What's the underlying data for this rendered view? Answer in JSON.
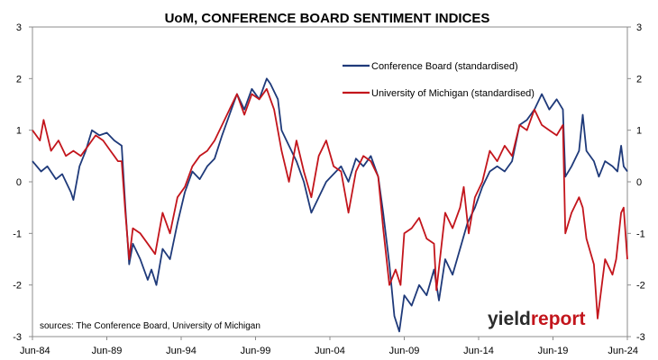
{
  "chart_data": {
    "type": "line",
    "title": "UoM, CONFERENCE BOARD SENTIMENT INDICES",
    "x_range": [
      "1984-06",
      "2024-06"
    ],
    "x_tick_labels": [
      "Jun-84",
      "Jun-89",
      "Jun-94",
      "Jun-99",
      "Jun-04",
      "Jun-09",
      "Jun-14",
      "Jun-19",
      "Jun-24"
    ],
    "ylim": [
      -3,
      3
    ],
    "y_ticks": [
      3,
      2,
      1,
      0,
      -1,
      -2,
      -3
    ],
    "y_axes": "left and right, identical scales",
    "grid": false,
    "legend_placement": "top-right",
    "series": [
      {
        "name": "Conference Board (standardised)",
        "color": "#1f3a7a",
        "points": [
          [
            "1984-06",
            0.4
          ],
          [
            "1985-01",
            0.2
          ],
          [
            "1985-06",
            0.3
          ],
          [
            "1986-01",
            0.05
          ],
          [
            "1986-06",
            0.15
          ],
          [
            "1987-01",
            -0.2
          ],
          [
            "1987-03",
            -0.35
          ],
          [
            "1987-08",
            0.3
          ],
          [
            "1988-01",
            0.6
          ],
          [
            "1988-06",
            1.0
          ],
          [
            "1988-12",
            0.9
          ],
          [
            "1989-06",
            0.95
          ],
          [
            "1989-12",
            0.8
          ],
          [
            "1990-06",
            0.7
          ],
          [
            "1990-09",
            -0.5
          ],
          [
            "1990-12",
            -1.6
          ],
          [
            "1991-03",
            -1.2
          ],
          [
            "1991-09",
            -1.5
          ],
          [
            "1992-03",
            -1.9
          ],
          [
            "1992-06",
            -1.7
          ],
          [
            "1992-10",
            -2.0
          ],
          [
            "1993-03",
            -1.3
          ],
          [
            "1993-09",
            -1.5
          ],
          [
            "1994-03",
            -0.8
          ],
          [
            "1994-09",
            -0.2
          ],
          [
            "1995-03",
            0.2
          ],
          [
            "1995-09",
            0.05
          ],
          [
            "1996-03",
            0.3
          ],
          [
            "1996-09",
            0.45
          ],
          [
            "1997-03",
            0.9
          ],
          [
            "1997-09",
            1.3
          ],
          [
            "1998-03",
            1.7
          ],
          [
            "1998-09",
            1.4
          ],
          [
            "1999-03",
            1.8
          ],
          [
            "1999-09",
            1.6
          ],
          [
            "2000-03",
            2.0
          ],
          [
            "2000-06",
            1.9
          ],
          [
            "2000-12",
            1.6
          ],
          [
            "2001-03",
            1.0
          ],
          [
            "2001-09",
            0.7
          ],
          [
            "2002-03",
            0.4
          ],
          [
            "2002-09",
            0.0
          ],
          [
            "2003-03",
            -0.6
          ],
          [
            "2003-09",
            -0.3
          ],
          [
            "2004-03",
            0.0
          ],
          [
            "2004-09",
            0.15
          ],
          [
            "2005-03",
            0.3
          ],
          [
            "2005-09",
            0.0
          ],
          [
            "2006-03",
            0.45
          ],
          [
            "2006-09",
            0.3
          ],
          [
            "2007-03",
            0.5
          ],
          [
            "2007-09",
            0.1
          ],
          [
            "2008-01",
            -0.6
          ],
          [
            "2008-06",
            -1.6
          ],
          [
            "2008-10",
            -2.6
          ],
          [
            "2009-02",
            -2.9
          ],
          [
            "2009-06",
            -2.2
          ],
          [
            "2009-12",
            -2.4
          ],
          [
            "2010-06",
            -2.0
          ],
          [
            "2010-12",
            -2.2
          ],
          [
            "2011-06",
            -1.7
          ],
          [
            "2011-10",
            -2.3
          ],
          [
            "2012-03",
            -1.5
          ],
          [
            "2012-09",
            -1.8
          ],
          [
            "2013-03",
            -1.3
          ],
          [
            "2013-09",
            -0.8
          ],
          [
            "2014-03",
            -0.5
          ],
          [
            "2014-09",
            -0.1
          ],
          [
            "2015-03",
            0.2
          ],
          [
            "2015-09",
            0.3
          ],
          [
            "2016-03",
            0.2
          ],
          [
            "2016-09",
            0.4
          ],
          [
            "2017-03",
            1.1
          ],
          [
            "2017-09",
            1.2
          ],
          [
            "2018-03",
            1.4
          ],
          [
            "2018-09",
            1.7
          ],
          [
            "2019-03",
            1.4
          ],
          [
            "2019-09",
            1.6
          ],
          [
            "2020-02",
            1.4
          ],
          [
            "2020-04",
            0.1
          ],
          [
            "2020-09",
            0.3
          ],
          [
            "2021-03",
            0.6
          ],
          [
            "2021-06",
            1.3
          ],
          [
            "2021-09",
            0.6
          ],
          [
            "2022-03",
            0.4
          ],
          [
            "2022-07",
            0.1
          ],
          [
            "2022-12",
            0.4
          ],
          [
            "2023-06",
            0.3
          ],
          [
            "2023-10",
            0.2
          ],
          [
            "2024-01",
            0.7
          ],
          [
            "2024-03",
            0.3
          ],
          [
            "2024-06",
            0.2
          ]
        ]
      },
      {
        "name": "University of Michigan (standardised)",
        "color": "#c3151c",
        "points": [
          [
            "1984-06",
            1.0
          ],
          [
            "1984-12",
            0.8
          ],
          [
            "1985-03",
            1.2
          ],
          [
            "1985-09",
            0.6
          ],
          [
            "1986-03",
            0.8
          ],
          [
            "1986-09",
            0.5
          ],
          [
            "1987-03",
            0.6
          ],
          [
            "1987-09",
            0.5
          ],
          [
            "1988-03",
            0.7
          ],
          [
            "1988-09",
            0.9
          ],
          [
            "1989-03",
            0.8
          ],
          [
            "1989-09",
            0.6
          ],
          [
            "1990-03",
            0.4
          ],
          [
            "1990-06",
            0.4
          ],
          [
            "1990-09",
            -0.6
          ],
          [
            "1990-12",
            -1.5
          ],
          [
            "1991-03",
            -0.9
          ],
          [
            "1991-09",
            -1.0
          ],
          [
            "1992-03",
            -1.2
          ],
          [
            "1992-09",
            -1.4
          ],
          [
            "1993-03",
            -0.6
          ],
          [
            "1993-09",
            -1.0
          ],
          [
            "1994-03",
            -0.3
          ],
          [
            "1994-09",
            -0.1
          ],
          [
            "1995-03",
            0.3
          ],
          [
            "1995-09",
            0.5
          ],
          [
            "1996-03",
            0.6
          ],
          [
            "1996-09",
            0.8
          ],
          [
            "1997-03",
            1.1
          ],
          [
            "1997-09",
            1.4
          ],
          [
            "1998-03",
            1.7
          ],
          [
            "1998-09",
            1.3
          ],
          [
            "1999-03",
            1.7
          ],
          [
            "1999-09",
            1.6
          ],
          [
            "2000-03",
            1.8
          ],
          [
            "2000-09",
            1.4
          ],
          [
            "2001-03",
            0.6
          ],
          [
            "2001-09",
            0.0
          ],
          [
            "2002-03",
            0.8
          ],
          [
            "2002-09",
            0.2
          ],
          [
            "2003-03",
            -0.3
          ],
          [
            "2003-09",
            0.5
          ],
          [
            "2004-03",
            0.8
          ],
          [
            "2004-09",
            0.3
          ],
          [
            "2005-03",
            0.2
          ],
          [
            "2005-09",
            -0.6
          ],
          [
            "2006-03",
            0.2
          ],
          [
            "2006-09",
            0.5
          ],
          [
            "2007-03",
            0.4
          ],
          [
            "2007-09",
            0.1
          ],
          [
            "2008-01",
            -0.9
          ],
          [
            "2008-06",
            -2.0
          ],
          [
            "2008-11",
            -1.7
          ],
          [
            "2009-03",
            -2.0
          ],
          [
            "2009-06",
            -1.0
          ],
          [
            "2009-12",
            -0.9
          ],
          [
            "2010-06",
            -0.7
          ],
          [
            "2010-12",
            -1.1
          ],
          [
            "2011-06",
            -1.2
          ],
          [
            "2011-08",
            -2.1
          ],
          [
            "2012-03",
            -0.6
          ],
          [
            "2012-09",
            -0.9
          ],
          [
            "2013-03",
            -0.5
          ],
          [
            "2013-06",
            -0.1
          ],
          [
            "2013-10",
            -1.0
          ],
          [
            "2014-03",
            -0.3
          ],
          [
            "2014-09",
            0.0
          ],
          [
            "2015-03",
            0.6
          ],
          [
            "2015-09",
            0.4
          ],
          [
            "2016-03",
            0.7
          ],
          [
            "2016-09",
            0.5
          ],
          [
            "2017-03",
            1.1
          ],
          [
            "2017-09",
            1.0
          ],
          [
            "2018-03",
            1.4
          ],
          [
            "2018-09",
            1.1
          ],
          [
            "2019-03",
            1.0
          ],
          [
            "2019-09",
            0.9
          ],
          [
            "2020-02",
            1.1
          ],
          [
            "2020-04",
            -1.0
          ],
          [
            "2020-09",
            -0.6
          ],
          [
            "2021-03",
            -0.3
          ],
          [
            "2021-06",
            -0.5
          ],
          [
            "2021-09",
            -1.1
          ],
          [
            "2022-03",
            -1.6
          ],
          [
            "2022-06",
            -2.65
          ],
          [
            "2022-12",
            -1.5
          ],
          [
            "2023-06",
            -1.8
          ],
          [
            "2023-09",
            -1.5
          ],
          [
            "2024-01",
            -0.6
          ],
          [
            "2024-03",
            -0.5
          ],
          [
            "2024-06",
            -1.5
          ]
        ]
      }
    ],
    "source_note": "sources: The Conference Board, University of Michigan"
  },
  "logo": {
    "part1": "yield",
    "part2": "report",
    "part1_color": "#2b2b2b",
    "part2_color": "#c3151c"
  }
}
